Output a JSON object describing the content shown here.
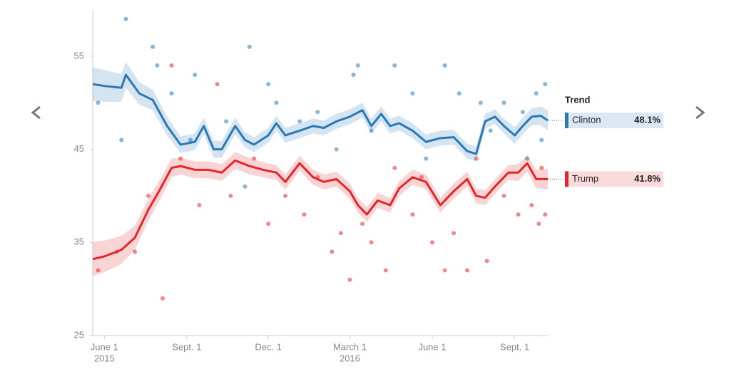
{
  "chart_data": {
    "type": "line",
    "legend_title": "Trend",
    "xlim": [
      "2015-05-19",
      "2016-10-08"
    ],
    "ylim": [
      25,
      60
    ],
    "yticks": [
      25,
      35,
      45,
      55
    ],
    "xticks": [
      {
        "value": "2015-06-01",
        "label": "June 1",
        "year": "2015"
      },
      {
        "value": "2015-09-01",
        "label": "Sept. 1"
      },
      {
        "value": "2015-12-01",
        "label": "Dec. 1"
      },
      {
        "value": "2016-03-01",
        "label": "March 1",
        "year": "2016"
      },
      {
        "value": "2016-06-01",
        "label": "June 1"
      },
      {
        "value": "2016-09-01",
        "label": "Sept. 1"
      }
    ],
    "series": [
      {
        "name": "Clinton",
        "color": "#2a78b5",
        "latest": 48.1,
        "latest_label": "48.1%",
        "x": [
          "2015-05-19",
          "2015-06-01",
          "2015-06-20",
          "2015-06-25",
          "2015-07-10",
          "2015-07-25",
          "2015-08-10",
          "2015-08-25",
          "2015-09-10",
          "2015-09-20",
          "2015-10-01",
          "2015-10-10",
          "2015-10-25",
          "2015-11-05",
          "2015-11-15",
          "2015-12-01",
          "2015-12-10",
          "2015-12-20",
          "2016-01-05",
          "2016-01-20",
          "2016-02-01",
          "2016-02-15",
          "2016-03-01",
          "2016-03-15",
          "2016-03-25",
          "2016-04-05",
          "2016-04-15",
          "2016-04-25",
          "2016-05-10",
          "2016-05-25",
          "2016-06-10",
          "2016-06-25",
          "2016-07-10",
          "2016-07-20",
          "2016-07-30",
          "2016-08-10",
          "2016-08-20",
          "2016-09-01",
          "2016-09-10",
          "2016-09-20",
          "2016-09-30",
          "2016-10-08"
        ],
        "values": [
          52,
          51.8,
          51.6,
          53,
          51,
          50.3,
          47.5,
          45.5,
          45.8,
          47.5,
          45,
          45,
          47.5,
          46,
          45.5,
          46.5,
          47.8,
          46.5,
          47,
          47.5,
          47.3,
          48,
          48.5,
          49.2,
          47.5,
          48.8,
          47.5,
          47.8,
          47,
          45.8,
          46.2,
          46.3,
          44.8,
          44.5,
          48,
          48.5,
          47.5,
          46.5,
          47.5,
          48.5,
          48.6,
          48.1
        ],
        "margins": [
          1.8,
          1.7,
          1.5,
          1.4,
          1.2,
          1.1,
          1.0,
          0.9,
          0.9,
          0.9,
          0.9,
          0.9,
          0.9,
          0.8,
          0.8,
          0.8,
          0.8,
          0.8,
          0.8,
          0.8,
          0.8,
          0.8,
          0.8,
          0.8,
          0.8,
          0.8,
          0.8,
          0.8,
          0.8,
          0.8,
          0.8,
          0.8,
          0.8,
          0.8,
          0.8,
          0.8,
          0.8,
          0.9,
          0.9,
          0.9,
          1.0,
          1.1
        ],
        "polls_x": [
          "2015-05-25",
          "2015-06-25",
          "2015-06-20",
          "2015-07-25",
          "2015-07-30",
          "2015-08-15",
          "2015-09-10",
          "2015-09-05",
          "2015-10-15",
          "2015-11-10",
          "2015-11-05",
          "2015-12-01",
          "2015-12-10",
          "2016-01-05",
          "2016-01-25",
          "2016-02-15",
          "2016-03-05",
          "2016-03-10",
          "2016-03-25",
          "2016-04-20",
          "2016-05-10",
          "2016-05-25",
          "2016-06-15",
          "2016-07-01",
          "2016-07-25",
          "2016-08-05",
          "2016-08-20",
          "2016-09-10",
          "2016-09-25",
          "2016-10-05",
          "2016-10-01",
          "2016-09-15"
        ],
        "polls": [
          50,
          59,
          46,
          56,
          54,
          51,
          53,
          46,
          48,
          56,
          41,
          52,
          50,
          48,
          49,
          45,
          53,
          54,
          47,
          54,
          51,
          44,
          54,
          51,
          50,
          47,
          50,
          49,
          51,
          52,
          46,
          44
        ]
      },
      {
        "name": "Trump",
        "color": "#e3262a",
        "latest": 41.8,
        "latest_label": "41.8%",
        "x": [
          "2015-05-19",
          "2015-06-01",
          "2015-06-20",
          "2015-07-05",
          "2015-07-20",
          "2015-08-01",
          "2015-08-15",
          "2015-08-25",
          "2015-09-10",
          "2015-09-25",
          "2015-10-10",
          "2015-10-25",
          "2015-11-10",
          "2015-11-25",
          "2015-12-10",
          "2015-12-20",
          "2016-01-05",
          "2016-01-20",
          "2016-02-01",
          "2016-02-15",
          "2016-03-01",
          "2016-03-10",
          "2016-03-20",
          "2016-04-01",
          "2016-04-15",
          "2016-04-25",
          "2016-05-10",
          "2016-05-25",
          "2016-06-10",
          "2016-06-25",
          "2016-07-10",
          "2016-07-20",
          "2016-07-30",
          "2016-08-10",
          "2016-08-25",
          "2016-09-05",
          "2016-09-15",
          "2016-09-25",
          "2016-10-08"
        ],
        "values": [
          33.2,
          33.5,
          34.2,
          35.5,
          38.5,
          40.5,
          43,
          43.2,
          42.8,
          42.8,
          42.5,
          43.8,
          43.2,
          42.8,
          42.5,
          41.5,
          43.5,
          42,
          41.5,
          41.8,
          40.5,
          39,
          38,
          39.5,
          39,
          40.8,
          42,
          41.5,
          39,
          40.5,
          41.8,
          40,
          39.8,
          41,
          42.5,
          42.5,
          43.5,
          41.8,
          41.8
        ],
        "margins": [
          1.8,
          1.7,
          1.5,
          1.3,
          1.2,
          1.1,
          1.0,
          0.9,
          0.9,
          0.9,
          0.9,
          0.9,
          0.9,
          0.8,
          0.8,
          0.8,
          0.8,
          0.8,
          0.8,
          0.8,
          0.8,
          0.8,
          0.8,
          0.8,
          0.8,
          0.8,
          0.8,
          0.8,
          0.8,
          0.8,
          0.8,
          0.8,
          0.8,
          0.8,
          0.8,
          0.9,
          0.9,
          1.0,
          1.1
        ],
        "polls_x": [
          "2015-05-25",
          "2015-06-15",
          "2015-07-05",
          "2015-07-20",
          "2015-08-05",
          "2015-08-15",
          "2015-08-25",
          "2015-09-15",
          "2015-10-05",
          "2015-10-20",
          "2015-11-15",
          "2015-12-01",
          "2015-12-20",
          "2016-01-10",
          "2016-01-25",
          "2016-02-10",
          "2016-02-20",
          "2016-03-01",
          "2016-03-15",
          "2016-03-25",
          "2016-04-10",
          "2016-04-20",
          "2016-05-10",
          "2016-05-20",
          "2016-06-01",
          "2016-06-15",
          "2016-06-25",
          "2016-07-10",
          "2016-07-20",
          "2016-08-01",
          "2016-08-20",
          "2016-09-05",
          "2016-09-20",
          "2016-10-05",
          "2016-09-28",
          "2016-10-01"
        ],
        "polls": [
          32,
          34,
          34,
          40,
          29,
          54,
          44,
          39,
          52,
          40,
          44,
          37,
          40,
          38,
          42,
          34,
          36,
          31,
          37,
          35,
          32,
          43,
          38,
          42,
          35,
          32,
          36,
          32,
          44,
          33,
          40,
          38,
          39,
          38,
          37,
          43
        ]
      }
    ]
  }
}
